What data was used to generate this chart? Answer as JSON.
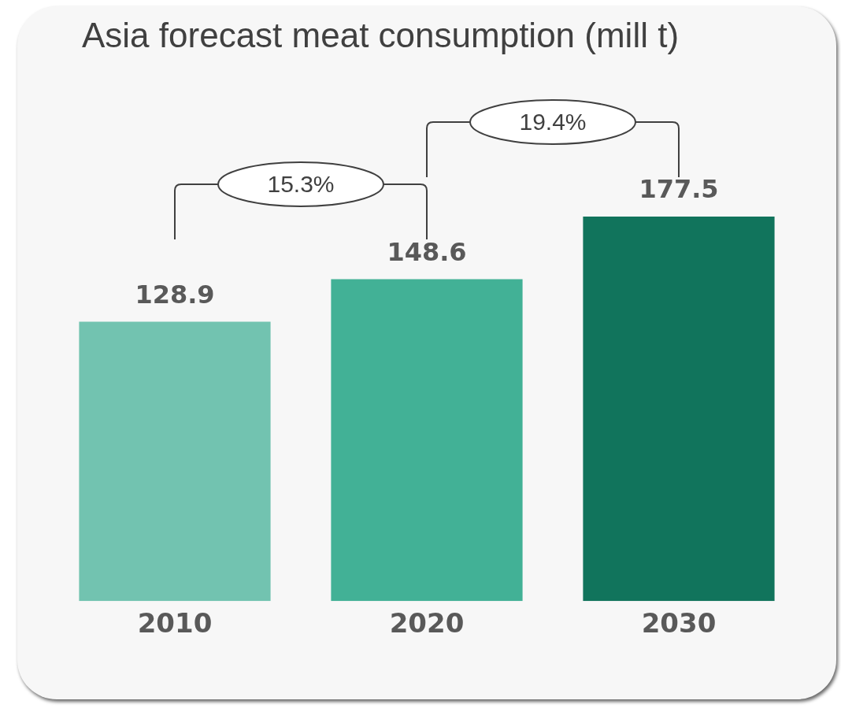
{
  "chart_data": {
    "type": "bar",
    "title": "Asia forecast meat consumption (mill t)",
    "categories": [
      "2010",
      "2020",
      "2030"
    ],
    "values": [
      128.9,
      148.6,
      177.5
    ],
    "colors": [
      "#72c3b0",
      "#42b196",
      "#11745c"
    ],
    "data_labels": true,
    "grid": false,
    "legend": false,
    "annotations": [
      "15.3%",
      "19.4%"
    ]
  }
}
